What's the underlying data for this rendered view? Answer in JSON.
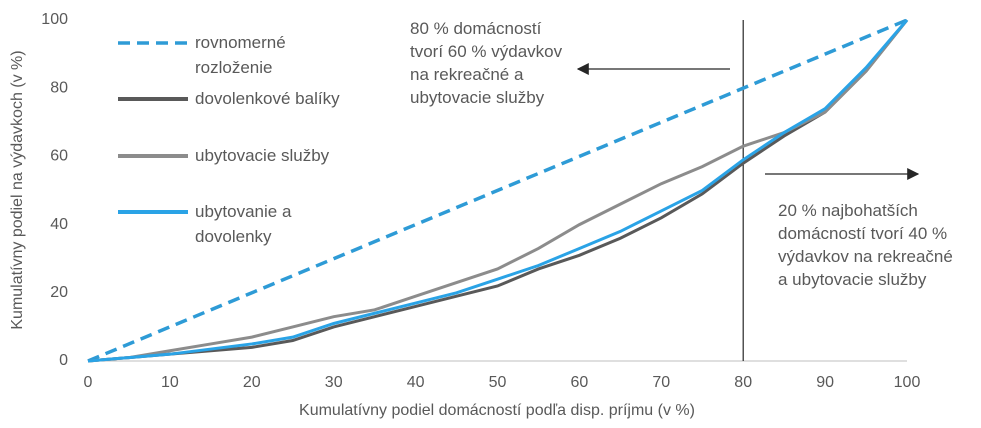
{
  "chart_data": {
    "type": "line",
    "xlabel": "Kumulatívny podiel domácností podľa disp. príjmu (v %)",
    "ylabel": "Kumulatívny podiel na výdavkoch (v %)",
    "xlim": [
      0,
      100
    ],
    "ylim": [
      0,
      100
    ],
    "xticks": [
      0,
      10,
      20,
      30,
      40,
      50,
      60,
      70,
      80,
      90,
      100
    ],
    "yticks": [
      0,
      20,
      40,
      60,
      80,
      100
    ],
    "vline": 80,
    "annotations": [
      "80 % domácností tvorí 60 % výdavkov na rekreačné a ubytovacie služby",
      "20 % najbohatších domácností tvorí 40 % výdavkov na rekreačné a ubytovacie služby"
    ],
    "series": [
      {
        "name": "rovnomerné rozloženie",
        "color": "#2e9bd6",
        "dashed": true,
        "x": [
          0,
          100
        ],
        "values": [
          0,
          100
        ]
      },
      {
        "name": "dovolenkové balíky",
        "color": "#595959",
        "x": [
          0,
          5,
          10,
          15,
          20,
          25,
          30,
          35,
          40,
          45,
          50,
          55,
          60,
          65,
          70,
          75,
          80,
          85,
          90,
          95,
          100
        ],
        "values": [
          0,
          1,
          2,
          3,
          4,
          6,
          10,
          13,
          16,
          19,
          22,
          27,
          31,
          36,
          42,
          49,
          58,
          66,
          73,
          85,
          100
        ]
      },
      {
        "name": "ubytovacie služby",
        "color": "#8c8c8c",
        "x": [
          0,
          5,
          10,
          15,
          20,
          25,
          30,
          35,
          40,
          45,
          50,
          55,
          60,
          65,
          70,
          75,
          80,
          85,
          90,
          95,
          100
        ],
        "values": [
          0,
          1,
          3,
          5,
          7,
          10,
          13,
          15,
          19,
          23,
          27,
          33,
          40,
          46,
          52,
          57,
          63,
          67,
          73,
          85,
          100
        ]
      },
      {
        "name": "ubytovanie a dovolenky",
        "color": "#2aa3e6",
        "x": [
          0,
          5,
          10,
          15,
          20,
          25,
          30,
          35,
          40,
          45,
          50,
          55,
          60,
          65,
          70,
          75,
          80,
          85,
          90,
          95,
          100
        ],
        "values": [
          0,
          1,
          2,
          3.5,
          5,
          7,
          11,
          14,
          17,
          20,
          24,
          28,
          33,
          38,
          44,
          50,
          59,
          67,
          74,
          86,
          100
        ]
      }
    ]
  }
}
